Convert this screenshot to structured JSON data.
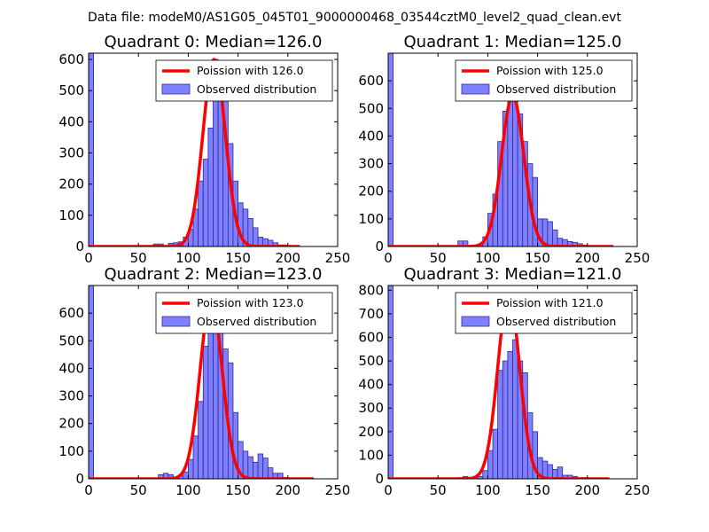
{
  "figure_title": "Data file: modeM0/AS1G05_045T01_9000000468_03544cztM0_level2_quad_clean.evt",
  "colors": {
    "bar_fill": "#8080ff",
    "bar_edge": "#2a2a9a",
    "poisson_line": "#ff0000",
    "axes": "#000000",
    "background": "#ffffff"
  },
  "chart_data": [
    {
      "type": "bar",
      "title": "Quadrant 0: Median=126.0",
      "xlim": [
        0,
        250
      ],
      "ylim": [
        0,
        620
      ],
      "xticks": [
        0,
        50,
        100,
        150,
        200,
        250
      ],
      "yticks": [
        0,
        100,
        200,
        300,
        400,
        500,
        600
      ],
      "legend_position": "top-right",
      "histogram": {
        "name": "Observed distribution",
        "bin_width": 5,
        "bins": [
          [
            0,
            620
          ],
          [
            65,
            8
          ],
          [
            70,
            8
          ],
          [
            80,
            10
          ],
          [
            85,
            12
          ],
          [
            90,
            15
          ],
          [
            95,
            30
          ],
          [
            100,
            55
          ],
          [
            105,
            120
          ],
          [
            110,
            210
          ],
          [
            115,
            280
          ],
          [
            120,
            380
          ],
          [
            125,
            600
          ],
          [
            130,
            540
          ],
          [
            135,
            490
          ],
          [
            140,
            330
          ],
          [
            145,
            210
          ],
          [
            150,
            140
          ],
          [
            155,
            120
          ],
          [
            160,
            90
          ],
          [
            165,
            60
          ],
          [
            170,
            30
          ],
          [
            175,
            25
          ],
          [
            180,
            20
          ],
          [
            185,
            12
          ],
          [
            190,
            5
          ],
          [
            195,
            5
          ],
          [
            200,
            2
          ]
        ]
      },
      "poisson": {
        "name": "Poission with 126.0",
        "mean": 126.0,
        "peak": 600,
        "x_range": [
          0,
          212
        ]
      }
    },
    {
      "type": "bar",
      "title": "Quadrant 1: Median=125.0",
      "xlim": [
        0,
        250
      ],
      "ylim": [
        0,
        700
      ],
      "xticks": [
        0,
        50,
        100,
        150,
        200,
        250
      ],
      "yticks": [
        0,
        100,
        200,
        300,
        400,
        500,
        600
      ],
      "legend_position": "top-right",
      "histogram": {
        "name": "Observed distribution",
        "bin_width": 5,
        "bins": [
          [
            0,
            700
          ],
          [
            70,
            20
          ],
          [
            75,
            20
          ],
          [
            85,
            5
          ],
          [
            90,
            8
          ],
          [
            95,
            35
          ],
          [
            100,
            120
          ],
          [
            105,
            190
          ],
          [
            110,
            380
          ],
          [
            115,
            490
          ],
          [
            120,
            540
          ],
          [
            125,
            560
          ],
          [
            130,
            480
          ],
          [
            135,
            380
          ],
          [
            140,
            300
          ],
          [
            145,
            250
          ],
          [
            150,
            100
          ],
          [
            155,
            100
          ],
          [
            160,
            90
          ],
          [
            165,
            60
          ],
          [
            170,
            30
          ],
          [
            175,
            25
          ],
          [
            180,
            18
          ],
          [
            185,
            15
          ],
          [
            190,
            10
          ],
          [
            195,
            5
          ],
          [
            205,
            2
          ]
        ]
      },
      "poisson": {
        "name": "Poission with 125.0",
        "mean": 125.0,
        "peak": 545,
        "x_range": [
          0,
          226
        ]
      }
    },
    {
      "type": "bar",
      "title": "Quadrant 2: Median=123.0",
      "xlim": [
        0,
        250
      ],
      "ylim": [
        0,
        700
      ],
      "xticks": [
        0,
        50,
        100,
        150,
        200,
        250
      ],
      "yticks": [
        0,
        100,
        200,
        300,
        400,
        500,
        600
      ],
      "legend_position": "top-right",
      "histogram": {
        "name": "Observed distribution",
        "bin_width": 5,
        "bins": [
          [
            0,
            700
          ],
          [
            70,
            15
          ],
          [
            75,
            20
          ],
          [
            80,
            15
          ],
          [
            85,
            5
          ],
          [
            90,
            10
          ],
          [
            95,
            25
          ],
          [
            100,
            70
          ],
          [
            105,
            155
          ],
          [
            110,
            280
          ],
          [
            115,
            480
          ],
          [
            120,
            550
          ],
          [
            125,
            640
          ],
          [
            130,
            560
          ],
          [
            135,
            470
          ],
          [
            140,
            420
          ],
          [
            145,
            240
          ],
          [
            150,
            135
          ],
          [
            155,
            100
          ],
          [
            160,
            80
          ],
          [
            165,
            60
          ],
          [
            170,
            90
          ],
          [
            175,
            75
          ],
          [
            180,
            40
          ],
          [
            185,
            20
          ],
          [
            190,
            20
          ],
          [
            195,
            5
          ],
          [
            200,
            3
          ],
          [
            215,
            2
          ]
        ]
      },
      "poisson": {
        "name": "Poission with 123.0",
        "mean": 123.0,
        "peak": 650,
        "x_range": [
          0,
          226
        ]
      }
    },
    {
      "type": "bar",
      "title": "Quadrant 3: Median=121.0",
      "xlim": [
        0,
        250
      ],
      "ylim": [
        0,
        820
      ],
      "xticks": [
        0,
        50,
        100,
        150,
        200,
        250
      ],
      "yticks": [
        0,
        100,
        200,
        300,
        400,
        500,
        600,
        700,
        800
      ],
      "legend_position": "top-right",
      "histogram": {
        "name": "Observed distribution",
        "bin_width": 5,
        "bins": [
          [
            0,
            820
          ],
          [
            70,
            5
          ],
          [
            75,
            10
          ],
          [
            85,
            5
          ],
          [
            90,
            10
          ],
          [
            95,
            35
          ],
          [
            100,
            120
          ],
          [
            105,
            210
          ],
          [
            110,
            460
          ],
          [
            115,
            500
          ],
          [
            120,
            540
          ],
          [
            125,
            590
          ],
          [
            130,
            500
          ],
          [
            135,
            450
          ],
          [
            140,
            280
          ],
          [
            145,
            200
          ],
          [
            150,
            90
          ],
          [
            155,
            75
          ],
          [
            160,
            60
          ],
          [
            165,
            40
          ],
          [
            170,
            50
          ],
          [
            175,
            15
          ],
          [
            180,
            15
          ],
          [
            185,
            10
          ],
          [
            190,
            5
          ],
          [
            195,
            5
          ],
          [
            200,
            3
          ]
        ]
      },
      "poisson": {
        "name": "Poission with 121.0",
        "mean": 121.0,
        "peak": 780,
        "x_range": [
          0,
          222
        ]
      }
    }
  ]
}
